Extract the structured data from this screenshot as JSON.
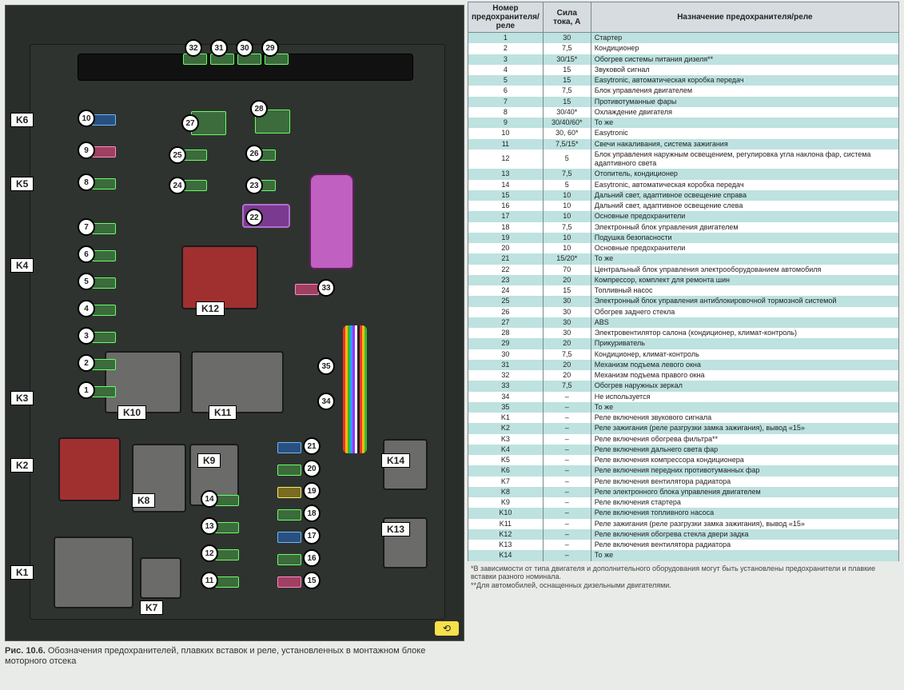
{
  "figure": {
    "caption_prefix": "Рис. 10.6.",
    "caption_text": "Обозначения предохранителей, плавких вставок и реле, установленных в монтажном блоке моторного отсека"
  },
  "table": {
    "headers": [
      "Номер предохранителя/реле",
      "Сила тока, А",
      "Назначение предохранителя/реле"
    ],
    "rows": [
      [
        "1",
        "30",
        "Стартер"
      ],
      [
        "2",
        "7,5",
        "Кондиционер"
      ],
      [
        "3",
        "30/15*",
        "Обогрев системы питания дизеля**"
      ],
      [
        "4",
        "15",
        "Звуковой сигнал"
      ],
      [
        "5",
        "15",
        "Easytronic, автоматическая коробка передач"
      ],
      [
        "6",
        "7,5",
        "Блок управления двигателем"
      ],
      [
        "7",
        "15",
        "Противотуманные фары"
      ],
      [
        "8",
        "30/40*",
        "Охлаждение двигателя"
      ],
      [
        "9",
        "30/40/60*",
        "То же"
      ],
      [
        "10",
        "30, 60*",
        "Easytronic"
      ],
      [
        "11",
        "7,5/15*",
        "Свечи накаливания, система зажигания"
      ],
      [
        "12",
        "5",
        "Блок управления наружным освещением, регулировка угла наклона фар, система адаптивного света"
      ],
      [
        "13",
        "7,5",
        "Отопитель, кондиционер"
      ],
      [
        "14",
        "5",
        "Easytronic, автоматическая коробка передач"
      ],
      [
        "15",
        "10",
        "Дальний свет, адаптивное освещение справа"
      ],
      [
        "16",
        "10",
        "Дальний свет, адаптивное освещение слева"
      ],
      [
        "17",
        "10",
        "Основные предохранители"
      ],
      [
        "18",
        "7,5",
        "Электронный блок управления двигателем"
      ],
      [
        "19",
        "10",
        "Подушка безопасности"
      ],
      [
        "20",
        "10",
        "Основные предохранители"
      ],
      [
        "21",
        "15/20*",
        "То же"
      ],
      [
        "22",
        "70",
        "Центральный блок управления электрооборудованием автомобиля"
      ],
      [
        "23",
        "20",
        "Компрессор, комплект для ремонта шин"
      ],
      [
        "24",
        "15",
        "Топливный насос"
      ],
      [
        "25",
        "30",
        "Электронный блок управления антиблокировочной тормозной системой"
      ],
      [
        "26",
        "30",
        "Обогрев заднего стекла"
      ],
      [
        "27",
        "30",
        "ABS"
      ],
      [
        "28",
        "30",
        "Электровентилятор салона (кондиционер, климат-контроль)"
      ],
      [
        "29",
        "20",
        "Прикуриватель"
      ],
      [
        "30",
        "7,5",
        "Кондиционер, климат-контроль"
      ],
      [
        "31",
        "20",
        "Механизм подъема левого окна"
      ],
      [
        "32",
        "20",
        "Механизм подъема правого окна"
      ],
      [
        "33",
        "7,5",
        "Обогрев наружных зеркал"
      ],
      [
        "34",
        "–",
        "Не используется"
      ],
      [
        "35",
        "–",
        "То же"
      ],
      [
        "K1",
        "–",
        "Реле включения звукового сигнала"
      ],
      [
        "K2",
        "–",
        "Реле зажигания (реле разгрузки замка зажигания), вывод «15»"
      ],
      [
        "K3",
        "–",
        "Реле включения обогрева фильтра**"
      ],
      [
        "K4",
        "–",
        "Реле включения дальнего света фар"
      ],
      [
        "K5",
        "–",
        "Реле включения компрессора кондиционера"
      ],
      [
        "K6",
        "–",
        "Реле включения передних противотуманных фар"
      ],
      [
        "K7",
        "–",
        "Реле включения вентилятора радиатора"
      ],
      [
        "K8",
        "–",
        "Реле электронного блока управления двигателем"
      ],
      [
        "K9",
        "–",
        "Реле включения стартера"
      ],
      [
        "K10",
        "–",
        "Реле включения топливного насоса"
      ],
      [
        "K11",
        "–",
        "Реле зажигания (реле разгрузки замка зажигания), вывод «15»"
      ],
      [
        "K12",
        "–",
        "Реле включения обогрева стекла двери задка"
      ],
      [
        "K13",
        "–",
        "Реле включения вентилятора радиатора"
      ],
      [
        "K14",
        "–",
        "То же"
      ]
    ]
  },
  "footnotes": [
    "*В зависимости от типа двигателя и дополнительного оборудования могут быть установлены предохранители и плавкие вставки разного номинала.",
    "**Для автомобилей, оснащенных дизельными двигателями."
  ],
  "diagram_markers": {
    "relays": [
      "K1",
      "K2",
      "K3",
      "K4",
      "K5",
      "K6",
      "K7",
      "K8",
      "K9",
      "K10",
      "K11",
      "K12",
      "K13",
      "K14"
    ],
    "numbered_top": [
      "32",
      "31",
      "30",
      "29"
    ],
    "numbered_center_pairs": [
      [
        "27",
        "28"
      ],
      [
        "25",
        "26"
      ],
      [
        "24",
        "23"
      ],
      [
        "",
        "22"
      ]
    ],
    "left_column": [
      "10",
      "9",
      "8",
      "7",
      "6",
      "5",
      "4",
      "3",
      "2",
      "1"
    ],
    "center_right": [
      "33",
      "35",
      "34"
    ],
    "bottom_left_col": [
      "14",
      "13",
      "12",
      "11"
    ],
    "bottom_right_col": [
      "21",
      "20",
      "19",
      "18",
      "17",
      "16",
      "15"
    ]
  }
}
